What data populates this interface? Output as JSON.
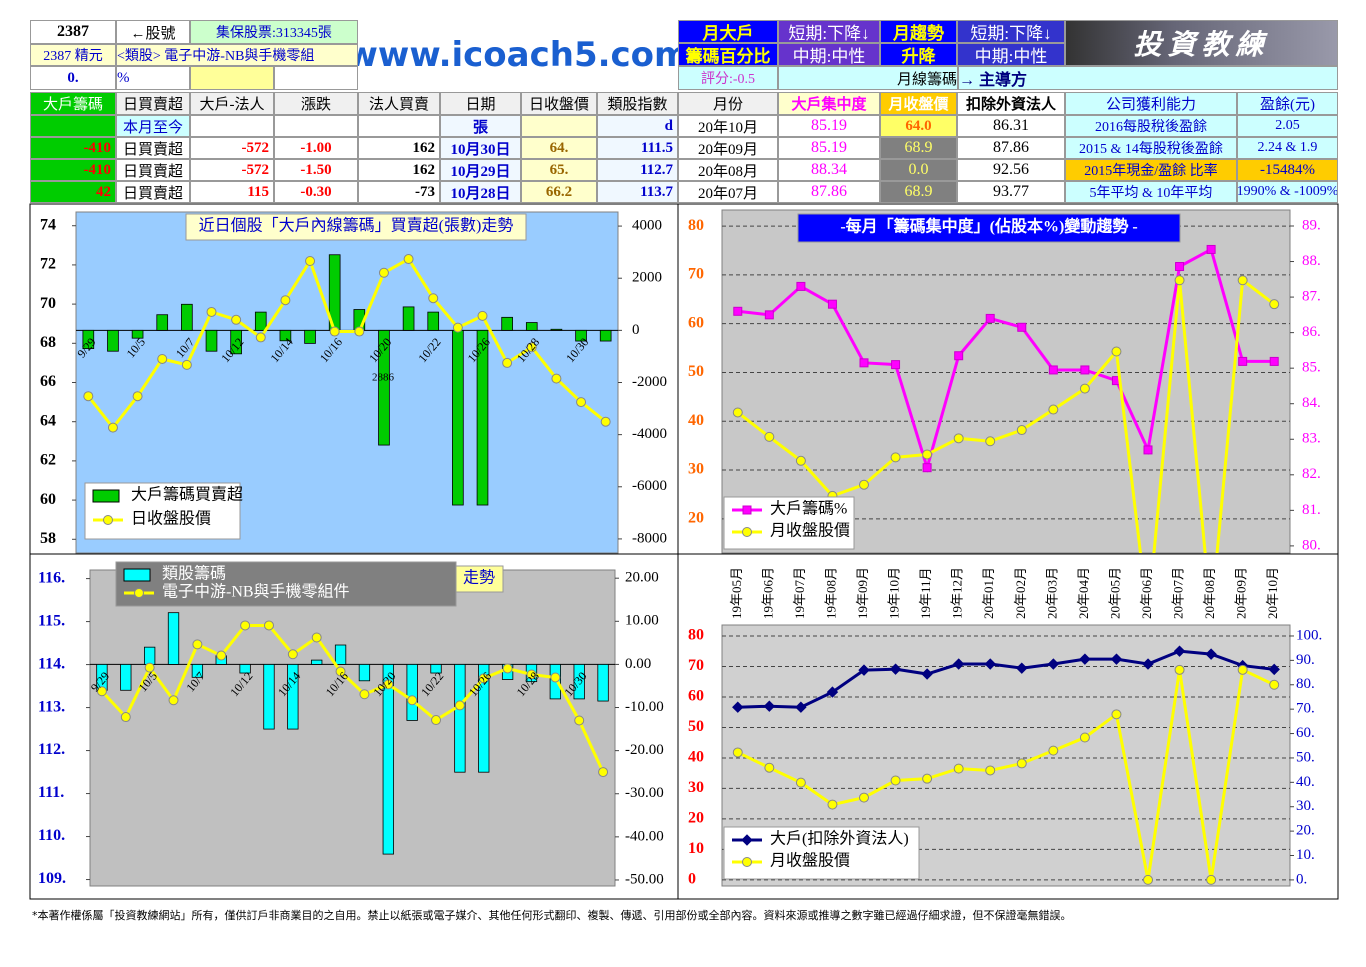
{
  "header": {
    "stock_code": "2387",
    "code_label": "←股號",
    "custody": "集保股票:313345張",
    "stock_name": "2387 精元",
    "sector": "<類股> 電子中游-NB與手機零組",
    "pct_value": "0.",
    "pct_unit": "%",
    "site": "www.icoach5.com",
    "monthly_big_label": [
      "月大戶",
      "籌碼百分比"
    ],
    "monthly_big_status": [
      "短期:下降↓",
      "中期:中性"
    ],
    "monthly_trend_label": [
      "月趨勢",
      "升降"
    ],
    "monthly_trend_status": [
      "短期:下降↓",
      "中期:中性"
    ],
    "banner": "投資教練",
    "score": "評分:-0.5",
    "monthly_chips": "月線籌碼",
    "lead": "→ 主導方"
  },
  "daily_table": {
    "headers": [
      "大戶籌碼",
      "日買賣超",
      "大戶-法人",
      "漲跌",
      "法人買賣",
      "日期",
      "日收盤價",
      "類股指數"
    ],
    "rows": [
      [
        null,
        "本月至今",
        null,
        null,
        null,
        "張",
        null,
        "d"
      ],
      [
        "-410",
        "日買賣超",
        "-572",
        "-1.00",
        "162",
        "10月30日",
        "64.",
        "111.5"
      ],
      [
        "-410",
        "日買賣超",
        "-572",
        "-1.50",
        "162",
        "10月29日",
        "65.",
        "112.7"
      ],
      [
        "42",
        "日買賣超",
        "115",
        "-0.30",
        "-73",
        "10月28日",
        "66.2",
        "113.7"
      ]
    ]
  },
  "monthly_table": {
    "headers": [
      "月份",
      "大戶集中度",
      "月收盤價",
      "扣除外資法人",
      "公司獲利能力",
      "盈餘(元)"
    ],
    "rows": [
      [
        "20年10月",
        "85.19",
        "64.0",
        "86.31",
        "2016每股稅後盈餘",
        "2.05"
      ],
      [
        "20年09月",
        "85.19",
        "68.9",
        "87.86",
        "2015 & 14每股稅後盈餘",
        "2.24 & 1.9"
      ],
      [
        "20年08月",
        "88.34",
        "0.0",
        "92.56",
        "2015年現金/盈餘 比率",
        "-15484%"
      ],
      [
        "20年07月",
        "87.86",
        "68.9",
        "93.77",
        "5年平均 & 10年平均",
        "1990% & -1009%"
      ]
    ]
  },
  "chart_data": [
    {
      "type": "bar_line",
      "title": "近日個股「大戶內線籌碼」買賣超(張數)走勢",
      "annotation": "2886",
      "categories": [
        "9/29",
        null,
        "10/5",
        null,
        "10/7",
        null,
        "10/12",
        null,
        "10/14",
        null,
        "10/16",
        null,
        "10/20",
        null,
        "10/22",
        null,
        "10/26",
        null,
        "10/28",
        null,
        "10/30",
        null
      ],
      "series": [
        {
          "name": "大戶籌碼買賣超",
          "type": "bar",
          "axis": "y2",
          "color": "#00cc00",
          "values": [
            -700,
            -800,
            -300,
            600,
            1000,
            -800,
            -900,
            700,
            -400,
            -500,
            2900,
            800,
            -4400,
            900,
            700,
            -6700,
            -6700,
            500,
            300,
            42,
            -410,
            -410
          ]
        },
        {
          "name": "日收盤股價",
          "type": "line",
          "marker": "circle",
          "color": "#ffff00",
          "values": [
            65.3,
            63.7,
            65.3,
            67.2,
            66.9,
            69.6,
            69.2,
            68.3,
            70.2,
            72.2,
            68.6,
            68.6,
            71.6,
            72.3,
            70.3,
            68.8,
            69.4,
            67.0,
            67.8,
            66.2,
            65,
            64
          ]
        }
      ],
      "ylim": [
        57.3,
        74.7
      ],
      "yticks": [
        58,
        60,
        62,
        64,
        66,
        68,
        70,
        72,
        74
      ],
      "y2lim": [
        -8540,
        4540
      ],
      "y2ticks": [
        -8000,
        -6000,
        -4000,
        -2000,
        0,
        2000,
        4000
      ],
      "grid": false,
      "legend": "lower left"
    },
    {
      "type": "line",
      "title": "-每月「籌碼集中度」(佔股本%)變動趨勢 -",
      "series": [
        {
          "name": "大戶籌碼%",
          "type": "line",
          "marker": "square",
          "axis": "y2",
          "color": "#ff00ff",
          "values": [
            86.6,
            86.5,
            87.3,
            86.8,
            85.15,
            85.1,
            82.2,
            85.35,
            86.4,
            86.15,
            84.95,
            84.95,
            84.65,
            82.7,
            87.86,
            88.34,
            85.19,
            85.19
          ]
        },
        {
          "name": "月收盤股價",
          "type": "line",
          "marker": "circle",
          "color": "#ffff00",
          "values": [
            41.8,
            36.8,
            31.9,
            24.7,
            27,
            32.6,
            33.2,
            36.5,
            35.9,
            38.2,
            42.4,
            46.7,
            54.3,
            0,
            68.9,
            0,
            68.9,
            64.0
          ]
        }
      ],
      "ylim": [
        13,
        83.3
      ],
      "yticks": [
        20,
        30,
        40,
        50,
        60,
        70,
        80
      ],
      "y2lim": [
        79.8,
        89.45
      ],
      "y2ticks": [
        {
          "value": 80,
          "label": "80."
        },
        {
          "value": 81,
          "label": "81."
        },
        {
          "value": 82,
          "label": "82."
        },
        {
          "value": 83,
          "label": "83."
        },
        {
          "value": 84,
          "label": "84."
        },
        {
          "value": 85,
          "label": "85."
        },
        {
          "value": 86,
          "label": "86."
        },
        {
          "value": 87,
          "label": "87."
        },
        {
          "value": 88,
          "label": "88."
        },
        {
          "value": 89,
          "label": "89."
        }
      ],
      "grid": true,
      "legend": "lower left"
    },
    {
      "type": "bar_line",
      "title": "走勢",
      "categories": [
        "9/29",
        null,
        "10/5",
        null,
        "10/7",
        null,
        "10/12",
        null,
        "10/14",
        null,
        "10/16",
        null,
        "10/20",
        null,
        "10/22",
        null,
        "10/26",
        null,
        "10/28",
        null,
        "10/30",
        null
      ],
      "series": [
        {
          "name": "類股籌碼",
          "type": "bar",
          "axis": "y2",
          "color": "#00ffff",
          "values": [
            -6,
            -6,
            4,
            12,
            -3,
            2,
            -2,
            -15,
            -15,
            1,
            4.5,
            -3.8,
            -44,
            -13,
            -2,
            -25,
            -25,
            -3.5,
            -4,
            -8,
            -8,
            -8.5
          ]
        },
        {
          "name": "電子中游-NB與手機零組件",
          "type": "line",
          "marker": "circle",
          "color": "#ffff00",
          "values": [
            113.38,
            112.78,
            113.93,
            113.17,
            114.47,
            114.21,
            114.91,
            114.91,
            114.24,
            114.63,
            113.84,
            113.31,
            113.54,
            113.17,
            112.71,
            113.05,
            113.68,
            113.91,
            113.77,
            113.7,
            112.7,
            111.5
          ]
        }
      ],
      "ylim": [
        108.85,
        116.2
      ],
      "yticks": [
        {
          "value": 109,
          "label": "109."
        },
        {
          "value": 110,
          "label": "110."
        },
        {
          "value": 111,
          "label": "111."
        },
        {
          "value": 112,
          "label": "112."
        },
        {
          "value": 113,
          "label": "113."
        },
        {
          "value": 114,
          "label": "114."
        },
        {
          "value": 115,
          "label": "115."
        },
        {
          "value": 116,
          "label": "116."
        }
      ],
      "y2lim": [
        -51.4,
        21.9
      ],
      "y2ticks": [
        {
          "value": -50,
          "label": "-50.00"
        },
        {
          "value": -40,
          "label": "-40.00"
        },
        {
          "value": -30,
          "label": "-30.00"
        },
        {
          "value": -20,
          "label": "-20.00"
        },
        {
          "value": -10,
          "label": "-10.00"
        },
        {
          "value": 0,
          "label": "0.00"
        },
        {
          "value": 10,
          "label": "10.00"
        },
        {
          "value": 20,
          "label": "20.00"
        }
      ],
      "grid": false,
      "legend": "upper left"
    },
    {
      "type": "line",
      "categories": [
        "19年05月",
        "19年06月",
        "19年07月",
        "19年08月",
        "19年09月",
        "19年10月",
        "19年11月",
        "19年12月",
        "20年01月",
        "20年02月",
        "20年03月",
        "20年04月",
        "20年05月",
        "20年06月",
        "20年07月",
        "20年08月",
        "20年09月",
        "20年10月"
      ],
      "series": [
        {
          "name": "大戶(扣除外資法人)",
          "type": "line",
          "marker": "diamond",
          "axis": "y2",
          "color": "#000080",
          "values": [
            70.8,
            71.2,
            70.8,
            77.0,
            86.0,
            86.4,
            84.4,
            88.5,
            88.5,
            86.8,
            88.5,
            90.5,
            90.5,
            88.5,
            93.77,
            92.56,
            87.86,
            86.31
          ]
        },
        {
          "name": "月收盤股價",
          "type": "line",
          "marker": "circle",
          "color": "#ffff00",
          "values": [
            41.8,
            36.8,
            31.9,
            24.7,
            27,
            32.6,
            33.2,
            36.5,
            35.9,
            38.2,
            42.4,
            46.7,
            54.3,
            0,
            68.9,
            0,
            68.9,
            64.0
          ]
        }
      ],
      "ylim": [
        -2,
        83.6
      ],
      "yticks": [
        0,
        10,
        20,
        30,
        40,
        50,
        60,
        70,
        80
      ],
      "y2lim": [
        -2.5,
        104.5
      ],
      "y2ticks": [
        {
          "value": 0,
          "label": "0."
        },
        {
          "value": 10,
          "label": "10."
        },
        {
          "value": 20,
          "label": "20."
        },
        {
          "value": 30,
          "label": "30."
        },
        {
          "value": 40,
          "label": "40."
        },
        {
          "value": 50,
          "label": "50."
        },
        {
          "value": 60,
          "label": "60."
        },
        {
          "value": 70,
          "label": "70."
        },
        {
          "value": 80,
          "label": "80."
        },
        {
          "value": 90,
          "label": "90."
        },
        {
          "value": 100,
          "label": "100."
        }
      ],
      "grid": true,
      "legend": "lower left"
    }
  ],
  "footer": "*本著作權係屬「投資教練網站」所有，僅供訂戶非商業目的之自用。禁止以紙張或電子媒介、其他任何形式翻印、複製、傳遞、引用部份或全部內容。資料來源或推導之數字雖已經過仔細求證，但不保證毫無錯誤。"
}
